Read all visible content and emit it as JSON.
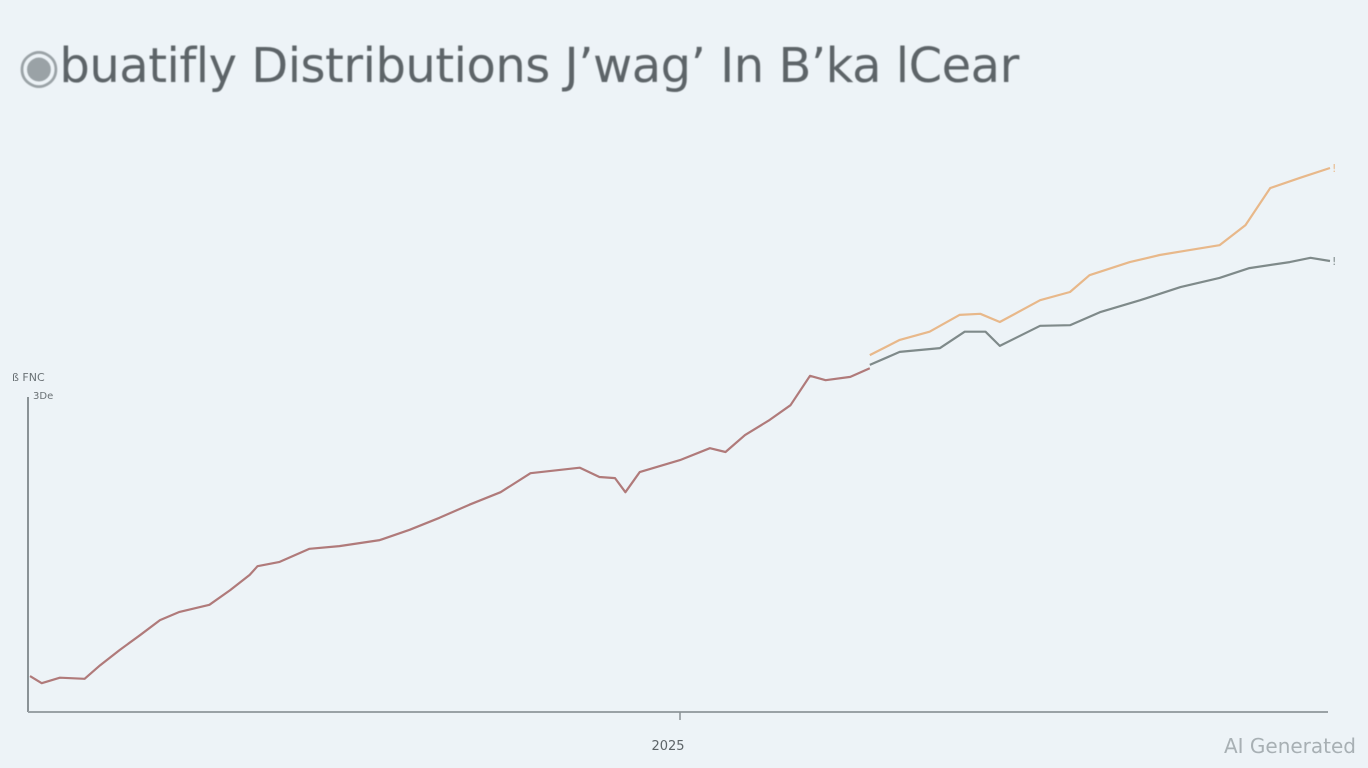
{
  "chart_data": {
    "type": "line",
    "title": "buatifly Distributions J’wag’ In B’ka lCear",
    "title_logo": "8",
    "ylabel": "ß FNC",
    "y_tick_label": "3De",
    "x_tick_labels": [
      {
        "x": 50,
        "label": "2025"
      }
    ],
    "xlim": [
      0,
      100
    ],
    "ylim": [
      0,
      100
    ],
    "grid": false,
    "legend": "none",
    "series": [
      {
        "color": "#b07a7a",
        "x": [
          0,
          0.9,
          2.3,
          4.2,
          5.4,
          6.9,
          8.5,
          10,
          11.5,
          13.8,
          15.4,
          16.9,
          17.5,
          19.2,
          21.5,
          23.8,
          26.9,
          29.2,
          31.5,
          33.8,
          36.2,
          38.5,
          42.3,
          43.8,
          45,
          45.8,
          46.9,
          50,
          52.3,
          53.5,
          55,
          56.9,
          58.5,
          60,
          61.2,
          63.1,
          64.6
        ],
        "y": [
          6.6,
          5.3,
          6.3,
          6.1,
          8.6,
          11.4,
          14.2,
          16.9,
          18.4,
          19.7,
          22.4,
          25.2,
          26.8,
          27.6,
          30.0,
          30.5,
          31.6,
          33.5,
          35.7,
          38.1,
          40.4,
          43.9,
          44.9,
          43.2,
          43.0,
          40.4,
          44.1,
          46.3,
          48.5,
          47.8,
          50.9,
          53.7,
          56.4,
          61.8,
          61.0,
          61.6,
          63.2
        ]
      },
      {
        "color": "#e8b88a",
        "end_label": "!",
        "x": [
          64.6,
          66.9,
          69.2,
          71.5,
          73.1,
          74.6,
          77.7,
          80,
          81.5,
          84.6,
          86.9,
          89.2,
          91.5,
          93.5,
          95.4,
          97.7,
          100
        ],
        "y": [
          65.6,
          68.4,
          69.9,
          73.0,
          73.2,
          71.7,
          75.7,
          77.2,
          80.3,
          82.7,
          84.0,
          84.9,
          85.8,
          89.5,
          96.3,
          98.2,
          100
        ]
      },
      {
        "color": "#7f8a8a",
        "end_label": "!",
        "x": [
          64.6,
          66.9,
          70,
          71.9,
          73.5,
          74.6,
          77.7,
          80,
          82.3,
          85.4,
          88.5,
          91.5,
          93.8,
          96.9,
          98.5,
          100
        ],
        "y": [
          63.8,
          66.2,
          66.9,
          69.9,
          69.9,
          67.3,
          71.0,
          71.1,
          73.5,
          75.7,
          78.1,
          79.8,
          81.6,
          82.7,
          83.5,
          82.9
        ]
      }
    ]
  },
  "watermark": "AI Generated"
}
